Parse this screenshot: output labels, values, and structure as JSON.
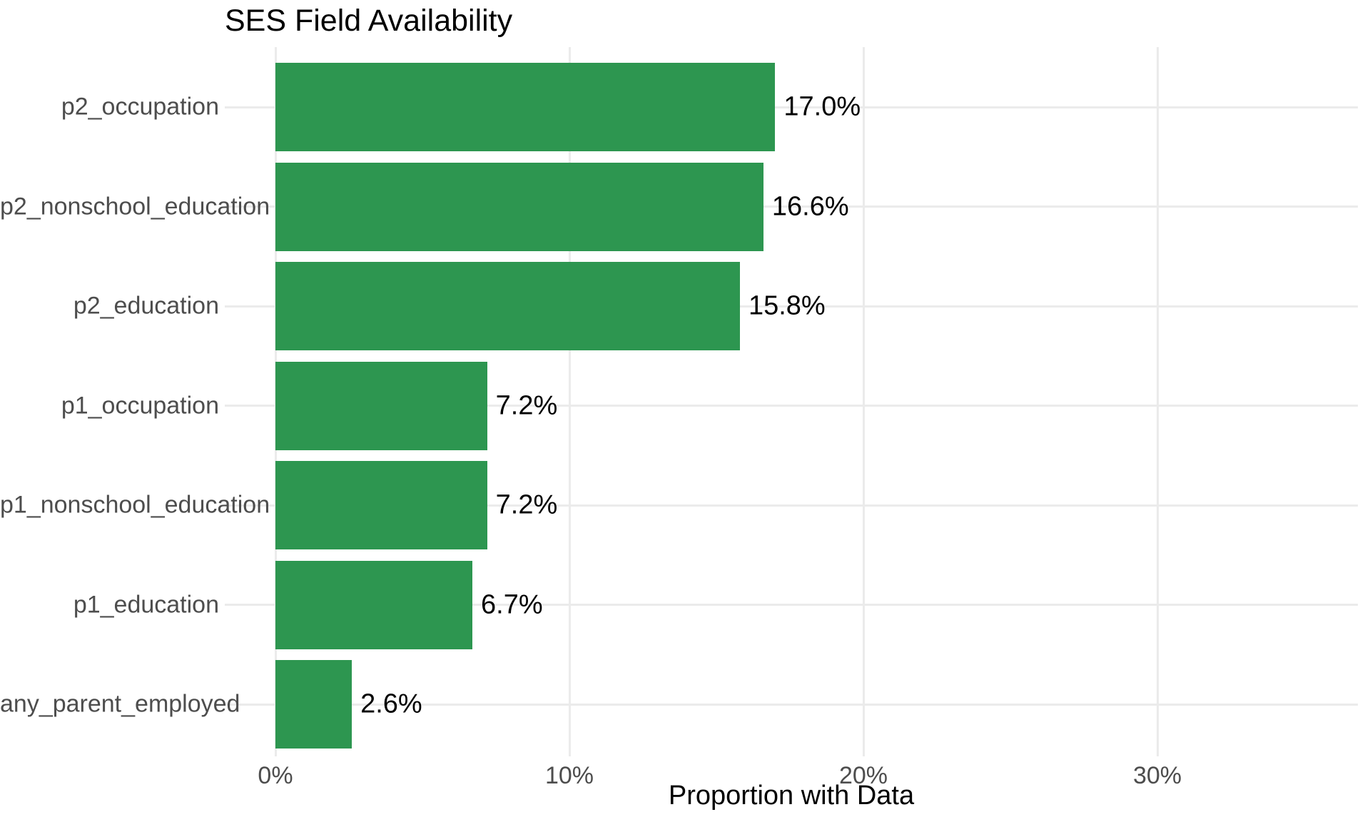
{
  "chart_data": {
    "type": "bar",
    "orientation": "horizontal",
    "title": "SES Field Availability",
    "xlabel": "Proportion with Data",
    "ylabel": "",
    "categories": [
      "p2_occupation",
      "p2_nonschool_education",
      "p2_education",
      "p1_occupation",
      "p1_nonschool_education",
      "p1_education",
      "any_parent_employed"
    ],
    "values": [
      17.0,
      16.6,
      15.8,
      7.2,
      7.2,
      6.7,
      2.6
    ],
    "value_labels": [
      "17.0%",
      "16.6%",
      "15.8%",
      "7.2%",
      "7.2%",
      "6.7%",
      "2.6%"
    ],
    "x_ticks": [
      {
        "value": 0,
        "label": "0%"
      },
      {
        "value": 10,
        "label": "10%"
      },
      {
        "value": 20,
        "label": "20%"
      },
      {
        "value": 30,
        "label": "30%"
      }
    ],
    "xlim": [
      0,
      36.75
    ],
    "grid": "major-vertical-and-row-gridlines",
    "legend": "none",
    "colors": {
      "bar": "#2d9650",
      "gridline": "#ebebeb",
      "axis_text": "#4d4d4d",
      "value_label_text": "#000000",
      "background": "#ffffff"
    }
  }
}
